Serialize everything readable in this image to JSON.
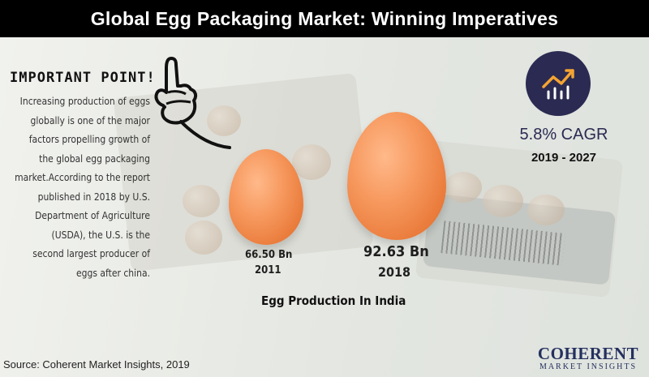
{
  "header": {
    "title": "Global Egg Packaging Market: Winning Imperatives"
  },
  "important": {
    "heading": "IMPORTANT POINT!",
    "lines": [
      "Increasing production of eggs",
      "globally is one of the major",
      "factors propelling growth of",
      "the global egg packaging",
      "market.According to the report",
      "published in 2018 by U.S.",
      "Department of Agriculture",
      "(USDA), the U.S. is the",
      "second largest producer of",
      "eggs after china."
    ]
  },
  "eggs": [
    {
      "value": "66.50 Bn",
      "year": "2011"
    },
    {
      "value": "92.63 Bn",
      "year": "2018"
    }
  ],
  "caption": "Egg Production In India",
  "cagr": {
    "value": "5.8% CAGR",
    "period": "2019 - 2027"
  },
  "source": "Source: Coherent Market Insights, 2019",
  "logo": {
    "name": "COHERENT",
    "tagline": "MARKET INSIGHTS"
  },
  "colors": {
    "egg": "#ef8a4a",
    "accent": "#2b2a52",
    "title_bg": "#000000"
  },
  "icons": {
    "cagr": "growth-chart-icon",
    "hand": "pointing-hand-icon"
  }
}
